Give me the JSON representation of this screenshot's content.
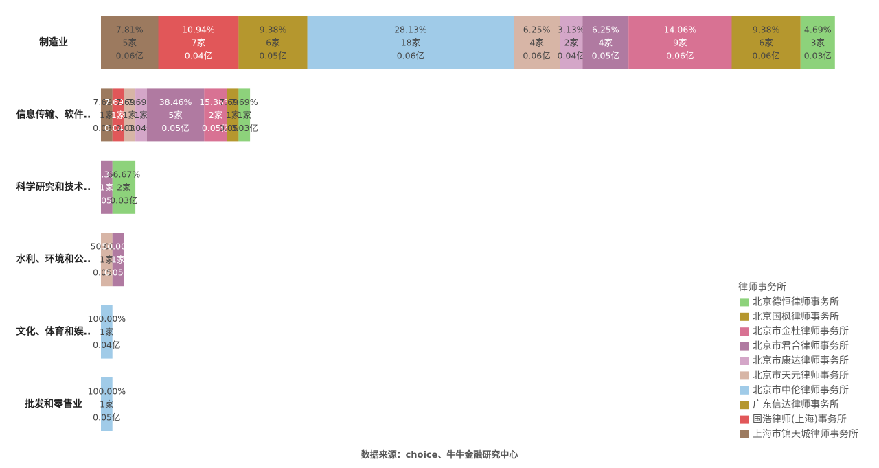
{
  "chart_data": {
    "type": "bar",
    "orientation": "horizontal",
    "stacked": true,
    "legend": {
      "title": "律师事务所",
      "position": "right",
      "entries": [
        {
          "name": "北京德恒律师事务所",
          "color": "#8DD27B"
        },
        {
          "name": "北京国枫律师事务所",
          "color": "#B5972E"
        },
        {
          "name": "北京市金杜律师事务所",
          "color": "#D87293"
        },
        {
          "name": "北京市君合律师事务所",
          "color": "#B07AA1"
        },
        {
          "name": "北京市康达律师事务所",
          "color": "#D4A6C8"
        },
        {
          "name": "北京市天元律师事务所",
          "color": "#D7B5A6"
        },
        {
          "name": "北京市中伦律师事务所",
          "color": "#A0CBE8"
        },
        {
          "name": "广东信达律师事务所",
          "color": "#B5972E"
        },
        {
          "name": "国浩律师(上海)事务所",
          "color": "#E15759"
        },
        {
          "name": "上海市锦天城律师事务所",
          "color": "#9C7A5F"
        }
      ]
    },
    "categories": [
      "制造业",
      "信息传输、软件..",
      "科学研究和技术..",
      "水利、环境和公..",
      "文化、体育和娱..",
      "批发和零售业"
    ],
    "rows": [
      {
        "category": "制造业",
        "segments": [
          {
            "firm": "上海市锦天城律师事务所",
            "count": 5,
            "pct": "7.81%",
            "count_label": "5家",
            "amount": "0.06亿"
          },
          {
            "firm": "国浩律师(上海)事务所",
            "count": 7,
            "pct": "10.94%",
            "count_label": "7家",
            "amount": "0.04亿"
          },
          {
            "firm": "广东信达律师事务所",
            "count": 6,
            "pct": "9.38%",
            "count_label": "6家",
            "amount": "0.05亿"
          },
          {
            "firm": "北京市中伦律师事务所",
            "count": 18,
            "pct": "28.13%",
            "count_label": "18家",
            "amount": "0.06亿"
          },
          {
            "firm": "北京市天元律师事务所",
            "count": 4,
            "pct": "6.25%",
            "count_label": "4家",
            "amount": "0.06亿"
          },
          {
            "firm": "北京市康达律师事务所",
            "count": 2,
            "pct": "3.13%",
            "count_label": "2家",
            "amount": "0.04亿"
          },
          {
            "firm": "北京市君合律师事务所",
            "count": 4,
            "pct": "6.25%",
            "count_label": "4家",
            "amount": "0.05亿"
          },
          {
            "firm": "北京市金杜律师事务所",
            "count": 9,
            "pct": "14.06%",
            "count_label": "9家",
            "amount": "0.06亿"
          },
          {
            "firm": "北京国枫律师事务所",
            "count": 6,
            "pct": "9.38%",
            "count_label": "6家",
            "amount": "0.06亿"
          },
          {
            "firm": "北京德恒律师事务所",
            "count": 3,
            "pct": "4.69%",
            "count_label": "3家",
            "amount": "0.03亿"
          }
        ]
      },
      {
        "category": "信息传输、软件..",
        "segments": [
          {
            "firm": "上海市锦天城律师事务所",
            "count": 1,
            "pct": "7.69%",
            "count_label": "1家",
            "amount": "0.03亿"
          },
          {
            "firm": "国浩律师(上海)事务所",
            "count": 1,
            "pct": "7.69%",
            "count_label": "1家",
            "amount": "0.04亿"
          },
          {
            "firm": "北京市天元律师事务所",
            "count": 1,
            "pct": "7.69%",
            "count_label": "1家",
            "amount": "0.03亿"
          },
          {
            "firm": "北京市康达律师事务所",
            "count": 1,
            "pct": "7.69%",
            "count_label": "1家",
            "amount": "0.04亿"
          },
          {
            "firm": "北京市君合律师事务所",
            "count": 5,
            "pct": "38.46%",
            "count_label": "5家",
            "amount": "0.05亿"
          },
          {
            "firm": "北京市金杜律师事务所",
            "count": 2,
            "pct": "15.38%",
            "count_label": "2家",
            "amount": "0.05亿"
          },
          {
            "firm": "北京国枫律师事务所",
            "count": 1,
            "pct": "7.69%",
            "count_label": "1家",
            "amount": "0.05亿"
          },
          {
            "firm": "北京德恒律师事务所",
            "count": 1,
            "pct": "7.69%",
            "count_label": "1家",
            "amount": "0.03亿"
          }
        ]
      },
      {
        "category": "科学研究和技术..",
        "segments": [
          {
            "firm": "北京市君合律师事务所",
            "count": 1,
            "pct": "33.33%",
            "count_label": "1家",
            "amount": "0.05亿"
          },
          {
            "firm": "北京德恒律师事务所",
            "count": 2,
            "pct": "66.67%",
            "count_label": "2家",
            "amount": "0.03亿"
          }
        ]
      },
      {
        "category": "水利、环境和公..",
        "segments": [
          {
            "firm": "北京市天元律师事务所",
            "count": 1,
            "pct": "50.00%",
            "count_label": "1家",
            "amount": "0.05亿"
          },
          {
            "firm": "北京市君合律师事务所",
            "count": 1,
            "pct": "50.00%",
            "count_label": "1家",
            "amount": "0.05亿"
          }
        ]
      },
      {
        "category": "文化、体育和娱..",
        "segments": [
          {
            "firm": "北京市中伦律师事务所",
            "count": 1,
            "pct": "100.00%",
            "count_label": "1家",
            "amount": "0.04亿"
          }
        ]
      },
      {
        "category": "批发和零售业",
        "segments": [
          {
            "firm": "北京市中伦律师事务所",
            "count": 1,
            "pct": "100.00%",
            "count_label": "1家",
            "amount": "0.05亿"
          }
        ]
      }
    ]
  },
  "source_note": "数据来源：choice、牛牛金融研究中心"
}
